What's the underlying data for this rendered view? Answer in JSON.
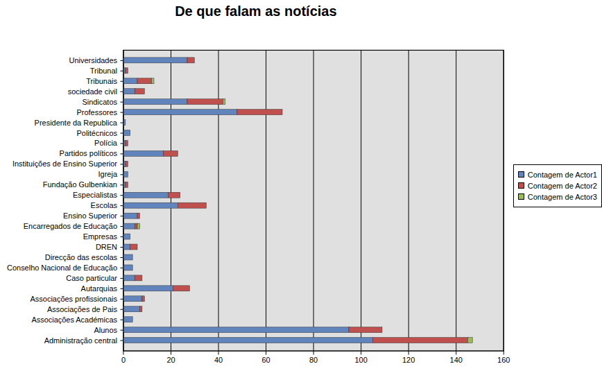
{
  "chart_data": {
    "type": "bar",
    "title": "De que falam as notícias",
    "orientation": "horizontal",
    "stacked": true,
    "grid": true,
    "legend": "right",
    "categories": [
      "Universidades",
      "Tribunal",
      "Tribunais",
      "sociedade civil",
      "Sindicatos",
      "Professores",
      "Presidente da Republica",
      "Politécnicos",
      "Polícia",
      "Partidos políticos",
      "Instituições de Ensino Superior",
      "Igreja",
      "Fundação Gulbenkian",
      "Especialistas",
      "Escolas",
      "Ensino Superior",
      "Encarregados de Educação",
      "Empresas",
      "DREN",
      "Direcção das escolas",
      "Conselho Nacional de Educação",
      "Caso particular",
      "Autarquias",
      "Associações profissionais",
      "Associações de Pais",
      "Associações Académicas",
      "Alunos",
      "Administração central"
    ],
    "series": [
      {
        "name": "Contagem de Actor1",
        "color": "#6184bd",
        "values": [
          27,
          1,
          6,
          5,
          27,
          48,
          1,
          3,
          1,
          17,
          1,
          2,
          1,
          19,
          23,
          6,
          5,
          3,
          3,
          4,
          4,
          5,
          21,
          8,
          7,
          4,
          95,
          105
        ]
      },
      {
        "name": "Contagem de Actor2",
        "color": "#c0504d",
        "values": [
          3,
          1,
          6,
          4,
          15,
          19,
          0,
          0,
          1,
          6,
          1,
          0,
          1,
          5,
          12,
          1,
          1,
          0,
          3,
          0,
          0,
          3,
          7,
          1,
          1,
          0,
          14,
          40
        ]
      },
      {
        "name": "Contagem de Actor3",
        "color": "#9bbb59",
        "values": [
          0,
          0,
          1,
          0,
          1,
          0,
          0,
          0,
          0,
          0,
          0,
          0,
          0,
          0,
          0,
          0,
          1,
          0,
          0,
          0,
          0,
          0,
          0,
          0,
          0,
          0,
          0,
          2
        ]
      }
    ],
    "xlim": [
      0,
      160
    ],
    "xticks": [
      0,
      20,
      40,
      60,
      80,
      100,
      120,
      140,
      160
    ]
  }
}
